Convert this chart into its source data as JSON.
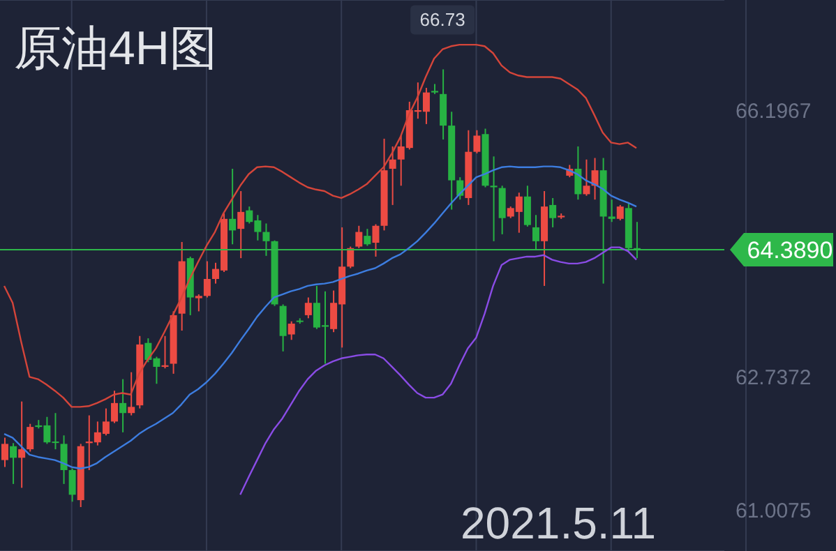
{
  "chart_data": {
    "type": "candlestick",
    "title": "原油4H图",
    "categories": [
      null,
      null,
      null,
      null,
      null,
      null,
      null,
      null,
      null,
      null,
      null,
      null,
      null,
      null,
      null,
      null,
      null,
      null,
      null,
      null,
      null,
      null,
      null,
      null,
      null,
      null,
      null,
      null,
      null,
      null,
      null,
      null,
      null,
      null,
      null,
      null,
      null,
      null,
      null,
      null,
      null,
      null,
      null,
      null,
      null,
      null,
      null,
      null,
      null,
      null,
      null,
      null,
      null,
      null,
      null,
      null,
      null,
      null,
      null,
      null,
      null,
      null,
      null,
      null,
      null,
      null,
      null,
      null,
      null,
      null,
      null,
      null,
      null,
      null,
      null,
      null
    ],
    "ohlc": [
      [
        61.66,
        61.95,
        61.57,
        61.87
      ],
      [
        61.84,
        61.88,
        61.35,
        61.69
      ],
      [
        61.69,
        62.42,
        61.3,
        61.8
      ],
      [
        61.8,
        62.13,
        61.77,
        62.09
      ],
      [
        62.11,
        62.18,
        62.07,
        62.09
      ],
      [
        62.11,
        62.22,
        61.87,
        61.89
      ],
      [
        61.9,
        62.27,
        61.8,
        61.89
      ],
      [
        61.87,
        61.98,
        61.35,
        61.53
      ],
      [
        61.53,
        61.55,
        61.12,
        61.21
      ],
      [
        61.14,
        61.87,
        61.05,
        61.84
      ],
      [
        61.88,
        62.24,
        61.53,
        61.9
      ],
      [
        61.89,
        62.16,
        61.85,
        62.02
      ],
      [
        62.0,
        62.33,
        61.98,
        62.16
      ],
      [
        62.16,
        62.56,
        62.14,
        62.4
      ],
      [
        62.4,
        62.71,
        62.02,
        62.27
      ],
      [
        62.27,
        62.8,
        62.24,
        62.35
      ],
      [
        62.37,
        63.27,
        62.33,
        63.16
      ],
      [
        63.18,
        63.24,
        62.93,
        62.96
      ],
      [
        62.98,
        63.0,
        62.65,
        62.87
      ],
      [
        62.87,
        63.27,
        62.85,
        62.89
      ],
      [
        62.91,
        63.59,
        62.78,
        63.54
      ],
      [
        63.56,
        64.49,
        63.34,
        64.24
      ],
      [
        64.28,
        64.3,
        63.54,
        63.77
      ],
      [
        63.76,
        63.81,
        63.59,
        63.79
      ],
      [
        63.79,
        64.24,
        63.77,
        64.01
      ],
      [
        64.01,
        64.22,
        63.95,
        64.14
      ],
      [
        64.12,
        64.86,
        64.1,
        64.79
      ],
      [
        64.79,
        65.44,
        64.46,
        64.64
      ],
      [
        64.66,
        65.15,
        64.28,
        64.88
      ],
      [
        64.9,
        64.95,
        64.73,
        64.75
      ],
      [
        64.77,
        64.84,
        64.51,
        64.62
      ],
      [
        64.62,
        64.73,
        64.31,
        64.5
      ],
      [
        64.5,
        64.51,
        63.66,
        63.68
      ],
      [
        63.66,
        63.68,
        63.07,
        63.27
      ],
      [
        63.29,
        63.46,
        63.22,
        63.43
      ],
      [
        63.47,
        63.5,
        63.43,
        63.46
      ],
      [
        63.54,
        63.77,
        63.5,
        63.7
      ],
      [
        63.7,
        63.92,
        63.36,
        63.38
      ],
      [
        63.41,
        63.85,
        62.91,
        63.39
      ],
      [
        63.36,
        63.86,
        63.32,
        63.7
      ],
      [
        63.68,
        64.68,
        63.12,
        64.17
      ],
      [
        64.17,
        64.43,
        64.15,
        64.41
      ],
      [
        64.43,
        64.7,
        64.41,
        64.62
      ],
      [
        64.57,
        64.66,
        64.44,
        64.46
      ],
      [
        64.48,
        64.72,
        64.3,
        64.7
      ],
      [
        64.7,
        65.83,
        64.64,
        65.42
      ],
      [
        65.44,
        65.73,
        64.97,
        65.56
      ],
      [
        65.56,
        65.87,
        65.22,
        65.73
      ],
      [
        65.71,
        66.31,
        65.69,
        66.2
      ],
      [
        66.18,
        66.56,
        66.09,
        66.2
      ],
      [
        66.18,
        66.49,
        66.02,
        66.43
      ],
      [
        66.45,
        66.54,
        66.41,
        66.43
      ],
      [
        66.41,
        66.73,
        65.82,
        66.0
      ],
      [
        66.0,
        66.18,
        64.91,
        65.29
      ],
      [
        65.29,
        65.33,
        65.04,
        65.09
      ],
      [
        65.06,
        65.94,
        64.97,
        65.66
      ],
      [
        65.66,
        65.94,
        65.64,
        65.87
      ],
      [
        65.89,
        65.96,
        65.2,
        65.22
      ],
      [
        65.22,
        65.6,
        64.5,
        65.2
      ],
      [
        65.19,
        65.22,
        64.59,
        64.8
      ],
      [
        64.82,
        64.95,
        64.8,
        64.93
      ],
      [
        64.88,
        65.13,
        64.61,
        65.08
      ],
      [
        65.08,
        65.22,
        64.69,
        64.71
      ],
      [
        64.68,
        64.84,
        64.39,
        64.5
      ],
      [
        64.5,
        65.15,
        63.92,
        64.95
      ],
      [
        64.97,
        65.06,
        64.68,
        64.8
      ],
      [
        64.81,
        64.86,
        64.79,
        64.83
      ],
      [
        65.35,
        65.49,
        65.33,
        65.44
      ],
      [
        65.44,
        65.73,
        65.04,
        65.11
      ],
      [
        65.11,
        65.56,
        65.09,
        65.22
      ],
      [
        65.22,
        65.58,
        65.04,
        65.42
      ],
      [
        65.42,
        65.58,
        63.95,
        64.82
      ],
      [
        64.82,
        65.04,
        64.75,
        64.79
      ],
      [
        64.79,
        64.97,
        64.77,
        64.95
      ],
      [
        64.93,
        64.99,
        64.37,
        64.41
      ],
      [
        64.41,
        64.75,
        64.28,
        64.389
      ]
    ],
    "colors": [
      "#ec4b43",
      "#27b243",
      "#ec4b43",
      "#ec4b43",
      "#27b243",
      "#27b243",
      "#27b243",
      "#27b243",
      "#27b243",
      "#ec4b43",
      "#ec4b43",
      "#ec4b43",
      "#ec4b43",
      "#ec4b43",
      "#27b243",
      "#ec4b43",
      "#ec4b43",
      "#27b243",
      "#27b243",
      "#ec4b43",
      "#ec4b43",
      "#ec4b43",
      "#27b243",
      "#ec4b43",
      "#ec4b43",
      "#ec4b43",
      "#ec4b43",
      "#27b243",
      "#ec4b43",
      "#27b243",
      "#27b243",
      "#27b243",
      "#27b243",
      "#27b243",
      "#ec4b43",
      "#27b243",
      "#ec4b43",
      "#27b243",
      "#27b243",
      "#ec4b43",
      "#ec4b43",
      "#ec4b43",
      "#ec4b43",
      "#27b243",
      "#ec4b43",
      "#ec4b43",
      "#ec4b43",
      "#ec4b43",
      "#ec4b43",
      "#ec4b43",
      "#ec4b43",
      "#27b243",
      "#27b243",
      "#27b243",
      "#27b243",
      "#ec4b43",
      "#ec4b43",
      "#27b243",
      "#27b243",
      "#27b243",
      "#ec4b43",
      "#ec4b43",
      "#27b243",
      "#27b243",
      "#ec4b43",
      "#27b243",
      "#ec4b43",
      "#ec4b43",
      "#27b243",
      "#ec4b43",
      "#ec4b43",
      "#27b243",
      "#27b243",
      "#ec4b43",
      "#27b243",
      "#27b243"
    ],
    "series": [
      {
        "type": "line",
        "color": "#d4453a",
        "values": [
          63.92,
          63.7,
          63.2,
          62.74,
          62.71,
          62.64,
          62.56,
          62.47,
          62.35,
          62.35,
          62.36,
          62.4,
          62.45,
          62.51,
          62.53,
          62.51,
          62.78,
          62.96,
          63.11,
          63.32,
          63.54,
          63.76,
          64.01,
          64.23,
          64.44,
          64.62,
          64.86,
          65.04,
          65.22,
          65.37,
          65.46,
          65.47,
          65.46,
          65.4,
          65.33,
          65.26,
          65.2,
          65.17,
          65.15,
          65.09,
          65.06,
          65.11,
          65.17,
          65.24,
          65.35,
          65.46,
          65.64,
          65.85,
          66.14,
          66.36,
          66.63,
          66.87,
          66.99,
          67.03,
          67.05,
          67.05,
          67.05,
          67.03,
          66.94,
          66.78,
          66.69,
          66.65,
          66.63,
          66.63,
          66.63,
          66.63,
          66.61,
          66.54,
          66.47,
          66.36,
          66.14,
          65.91,
          65.78,
          65.76,
          65.78,
          65.71
        ]
      },
      {
        "type": "line",
        "color": "#3d7de0",
        "values": [
          62.0,
          61.95,
          61.84,
          61.73,
          61.7,
          61.68,
          61.66,
          61.62,
          61.57,
          61.55,
          61.57,
          61.62,
          61.7,
          61.77,
          61.84,
          61.91,
          62.0,
          62.07,
          62.13,
          62.2,
          62.27,
          62.38,
          62.51,
          62.58,
          62.67,
          62.78,
          62.91,
          63.05,
          63.21,
          63.36,
          63.52,
          63.65,
          63.77,
          63.81,
          63.85,
          63.88,
          63.92,
          63.94,
          63.95,
          63.97,
          64.01,
          64.05,
          64.08,
          64.12,
          64.15,
          64.21,
          64.28,
          64.33,
          64.41,
          64.5,
          64.61,
          64.73,
          64.86,
          64.99,
          65.11,
          65.22,
          65.33,
          65.37,
          65.42,
          65.46,
          65.47,
          65.46,
          65.46,
          65.46,
          65.47,
          65.47,
          65.46,
          65.42,
          65.37,
          65.29,
          65.24,
          65.18,
          65.09,
          65.04,
          65.0,
          64.95
        ]
      },
      {
        "type": "line",
        "color": "#8a4ce6",
        "values": [
          null,
          null,
          null,
          null,
          null,
          null,
          null,
          null,
          null,
          null,
          null,
          null,
          null,
          null,
          null,
          null,
          null,
          null,
          null,
          null,
          null,
          null,
          null,
          null,
          null,
          null,
          null,
          null,
          61.21,
          61.44,
          61.66,
          61.88,
          62.06,
          62.2,
          62.38,
          62.56,
          62.71,
          62.82,
          62.89,
          62.94,
          62.98,
          63.0,
          63.02,
          63.03,
          63.03,
          62.98,
          62.87,
          62.76,
          62.64,
          62.53,
          62.47,
          62.47,
          62.51,
          62.65,
          62.89,
          63.11,
          63.25,
          63.56,
          63.92,
          64.19,
          64.26,
          64.28,
          64.3,
          64.3,
          64.32,
          64.26,
          64.23,
          64.21,
          64.21,
          64.23,
          64.28,
          64.35,
          64.42,
          64.42,
          64.37,
          64.26
        ]
      }
    ],
    "ylim": [
      60.48,
      67.63
    ],
    "yticks": [
      66.1967,
      62.7372,
      61.0075
    ],
    "ref_lines": [
      {
        "axis": "y",
        "value": 64.389,
        "label": "64.3890",
        "color": "#2eb84a"
      }
    ],
    "annotations": [
      {
        "text": "66.73",
        "y": 66.73
      },
      "2021.5.11"
    ],
    "grid": true,
    "tick_labels": "y"
  }
}
